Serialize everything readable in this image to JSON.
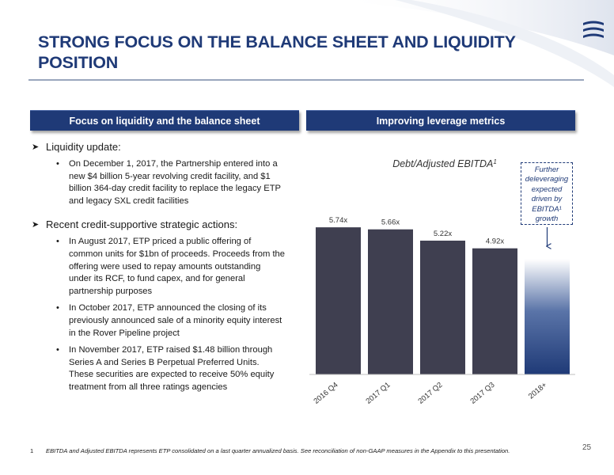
{
  "title": "STRONG FOCUS ON THE BALANCE SHEET AND LIQUIDITY POSITION",
  "left_panel": {
    "header": "Focus on liquidity and the balance sheet",
    "sections": [
      {
        "heading": "Liquidity update:",
        "items": [
          "On December 1, 2017, the Partnership entered into a new $4 billion 5-year revolving credit facility, and $1 billion 364-day credit facility to replace the legacy ETP and legacy SXL credit facilities"
        ]
      },
      {
        "heading": "Recent credit-supportive strategic actions:",
        "items": [
          "In August 2017, ETP priced a public offering of common units for $1bn of proceeds. Proceeds from the offering were used to repay amounts outstanding under its RCF, to fund capex, and for general partnership purposes",
          "In October 2017, ETP announced the closing of its previously announced sale of a minority equity interest in the Rover Pipeline project",
          "In November 2017, ETP raised $1.48 billion through Series A and Series B Perpetual Preferred Units. These securities are expected to receive 50% equity treatment from all three ratings agencies"
        ]
      }
    ]
  },
  "right_panel": {
    "header": "Improving leverage metrics",
    "callout": [
      "Further",
      "deleveraging",
      "expected",
      "driven by",
      "EBITDA¹",
      "growth"
    ]
  },
  "chart_data": {
    "type": "bar",
    "title": "Debt/Adjusted EBITDA",
    "title_superscript": "1",
    "categories": [
      "2016 Q4",
      "2017 Q1",
      "2017 Q2",
      "2017 Q3",
      "2018+"
    ],
    "values": [
      5.74,
      5.66,
      5.22,
      4.92,
      null
    ],
    "data_labels": [
      "5.74x",
      "5.66x",
      "5.22x",
      "4.92x",
      ""
    ],
    "projected_bar": {
      "category": "2018+",
      "value": 4.5,
      "style": "gradient"
    },
    "ylim": [
      0,
      6.3
    ],
    "xlabel": "",
    "ylabel": "",
    "grid": false,
    "colors": {
      "bar": "#3f3f50",
      "projected": "#1f3a77"
    }
  },
  "footnote": {
    "number": "1",
    "text": "EBITDA and Adjusted EBITDA represents ETP consolidated on a last quarter annualized basis. See reconciliation of non-GAAP measures in the Appendix to this presentation."
  },
  "page_number": "25",
  "colors": {
    "brand_navy": "#1f3a77",
    "rule": "#9aa6bd"
  }
}
